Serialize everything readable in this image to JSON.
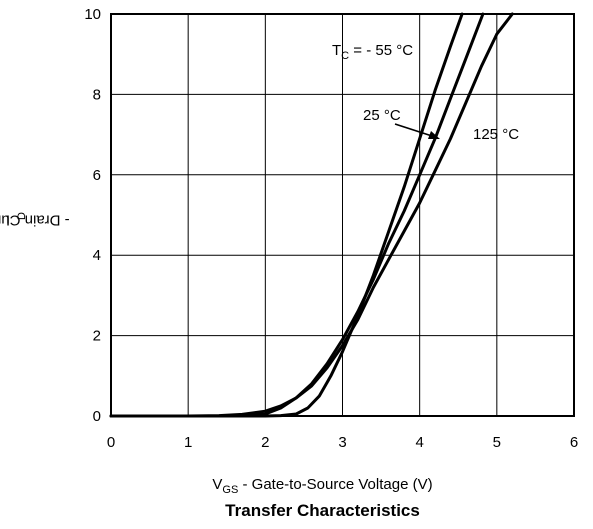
{
  "chart_data": {
    "type": "line",
    "title": "Transfer Characteristics",
    "xlabel": {
      "main": "V",
      "sub": "GS",
      "rest": " - Gate-to-Source Voltage (V)"
    },
    "ylabel": {
      "main": "I",
      "sub": "D",
      "rest": " - Drain Current (A)"
    },
    "xlim": [
      0,
      6
    ],
    "ylim": [
      0,
      10
    ],
    "xticks": [
      "0",
      "1",
      "2",
      "3",
      "4",
      "5",
      "6"
    ],
    "yticks": [
      "0",
      "2",
      "4",
      "6",
      "8",
      "10"
    ],
    "grid": true,
    "series": [
      {
        "name": "- 55 °C",
        "points": [
          [
            0,
            0
          ],
          [
            1.5,
            0
          ],
          [
            2.0,
            0
          ],
          [
            2.2,
            0.01
          ],
          [
            2.4,
            0.05
          ],
          [
            2.55,
            0.2
          ],
          [
            2.7,
            0.5
          ],
          [
            2.85,
            1.0
          ],
          [
            3.0,
            1.6
          ],
          [
            3.2,
            2.5
          ],
          [
            3.4,
            3.5
          ],
          [
            3.6,
            4.6
          ],
          [
            3.8,
            5.7
          ],
          [
            4.0,
            6.9
          ],
          [
            4.2,
            8.1
          ],
          [
            4.4,
            9.2
          ],
          [
            4.55,
            10
          ]
        ]
      },
      {
        "name": "25 °C",
        "points": [
          [
            0,
            0
          ],
          [
            1.5,
            0
          ],
          [
            1.8,
            0.01
          ],
          [
            2.0,
            0.05
          ],
          [
            2.2,
            0.2
          ],
          [
            2.4,
            0.45
          ],
          [
            2.6,
            0.8
          ],
          [
            2.8,
            1.3
          ],
          [
            3.0,
            1.9
          ],
          [
            3.2,
            2.6
          ],
          [
            3.4,
            3.4
          ],
          [
            3.6,
            4.3
          ],
          [
            3.8,
            5.1
          ],
          [
            4.0,
            6.0
          ],
          [
            4.2,
            6.9
          ],
          [
            4.4,
            7.9
          ],
          [
            4.6,
            8.9
          ],
          [
            4.8,
            9.9
          ],
          [
            4.82,
            10
          ]
        ]
      },
      {
        "name": "125 °C",
        "points": [
          [
            0,
            0
          ],
          [
            1.0,
            0
          ],
          [
            1.4,
            0.01
          ],
          [
            1.7,
            0.04
          ],
          [
            2.0,
            0.12
          ],
          [
            2.2,
            0.25
          ],
          [
            2.4,
            0.45
          ],
          [
            2.6,
            0.75
          ],
          [
            2.8,
            1.2
          ],
          [
            3.0,
            1.75
          ],
          [
            3.2,
            2.4
          ],
          [
            3.4,
            3.2
          ],
          [
            3.6,
            3.9
          ],
          [
            3.8,
            4.6
          ],
          [
            4.0,
            5.3
          ],
          [
            4.2,
            6.1
          ],
          [
            4.4,
            6.9
          ],
          [
            4.6,
            7.8
          ],
          [
            4.8,
            8.7
          ],
          [
            5.0,
            9.5
          ],
          [
            5.2,
            10
          ]
        ]
      }
    ],
    "annotations": {
      "tc_prefix": "T",
      "tc_sub": "C",
      "tc_rest": " = - 55 °C",
      "t25": "25 °C",
      "t125": "125 °C"
    }
  }
}
